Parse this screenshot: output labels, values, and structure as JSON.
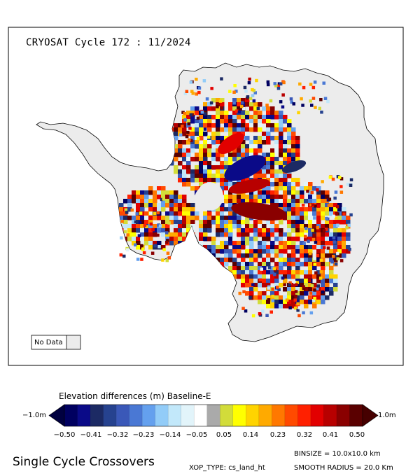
{
  "map_title": "CRYOSAT Cycle 172 : 11/2024",
  "no_data_label": "No Data",
  "legend": {
    "title": "Elevation differences (m) Baseline-E",
    "left_label": "−1.0m",
    "right_label": "1.0m",
    "ticks": [
      "−0.50",
      "−0.41",
      "−0.32",
      "−0.23",
      "−0.14",
      "−0.05",
      "0.05",
      "0.14",
      "0.23",
      "0.32",
      "0.41",
      "0.50"
    ],
    "colors": [
      "#000060",
      "#0a0a88",
      "#1c2a64",
      "#26428f",
      "#3a58b8",
      "#4a78d4",
      "#64a0ee",
      "#92ccf8",
      "#c2e8fa",
      "#e2f4fa",
      "#ffffff",
      "#aaaaaa",
      "#d2dc3a",
      "#ffff00",
      "#ffd400",
      "#ffaa00",
      "#ff7800",
      "#ff4a00",
      "#ff2000",
      "#e20000",
      "#b80000",
      "#8a0000",
      "#5a0000"
    ],
    "low_color": "#000040",
    "high_color": "#460000"
  },
  "footer": {
    "title": "Single Cycle Crossovers",
    "binsize": "BINSIZE = 10.0x10.0 km",
    "xop_type": "XOP_TYPE: cs_land_ht",
    "smooth_radius": "SMOOTH RADIUS =  20.0 Km"
  }
}
